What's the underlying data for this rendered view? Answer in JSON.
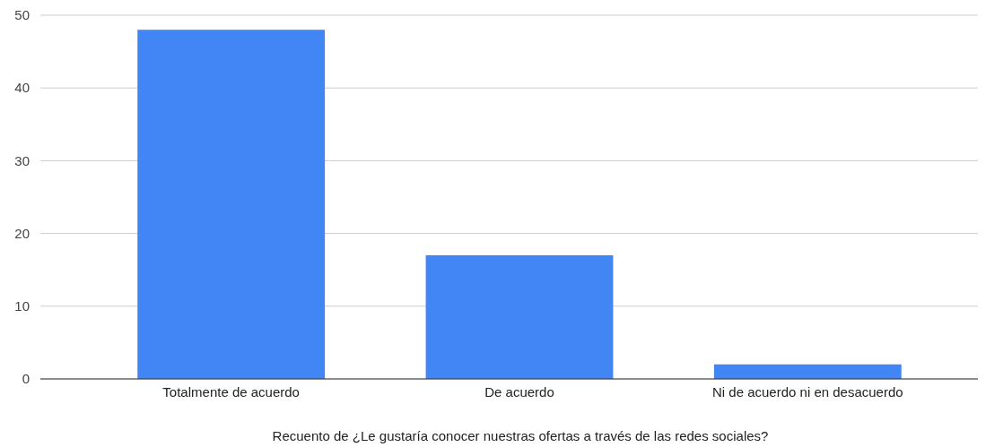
{
  "chart_data": {
    "type": "bar",
    "xlabel": "Recuento de ¿Le gustaría conocer nuestras ofertas a través de las redes sociales?",
    "categories": [
      "Totalmente de acuerdo",
      "De acuerdo",
      "Ni de acuerdo ni en desacuerdo"
    ],
    "values": [
      48,
      17,
      2
    ],
    "color": "#4285f4",
    "ylim": [
      0,
      50
    ],
    "yticks": [
      0,
      10,
      20,
      30,
      40,
      50
    ],
    "grid": "y"
  }
}
